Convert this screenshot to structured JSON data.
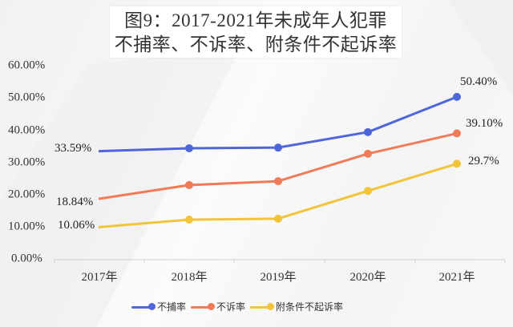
{
  "title": {
    "line1": "图9：2017-2021年未成年人犯罪",
    "line2": "不捕率、不诉率、附条件不起诉率"
  },
  "y_axis": {
    "ticks": [
      "60.00%",
      "50.00%",
      "40.00%",
      "30.00%",
      "20.00%",
      "10.00%",
      "0.00%"
    ]
  },
  "x_axis": {
    "ticks": [
      "2017年",
      "2018年",
      "2019年",
      "2020年",
      "2021年"
    ]
  },
  "data_labels": {
    "blue_start": "33.59%",
    "orange_start": "18.84%",
    "yellow_start": "10.06%",
    "blue_end": "50.40%",
    "orange_end": "39.10%",
    "yellow_end": "29.7%"
  },
  "legend": [
    {
      "label": "不捕率",
      "color": "#4e66d9"
    },
    {
      "label": "不诉率",
      "color": "#ef7b57"
    },
    {
      "label": "附条件不起诉率",
      "color": "#f2c43a"
    }
  ],
  "chart_data": {
    "type": "line",
    "title": "图9：2017-2021年未成年人犯罪 不捕率、不诉率、附条件不起诉率",
    "categories": [
      "2017年",
      "2018年",
      "2019年",
      "2020年",
      "2021年"
    ],
    "series": [
      {
        "name": "不捕率",
        "color": "#4e66d9",
        "values": [
          33.59,
          34.5,
          34.7,
          39.5,
          50.4
        ]
      },
      {
        "name": "不诉率",
        "color": "#ef7b57",
        "values": [
          18.84,
          23.1,
          24.3,
          32.8,
          39.1
        ]
      },
      {
        "name": "附条件不起诉率",
        "color": "#f2c43a",
        "values": [
          10.06,
          12.4,
          12.7,
          21.3,
          29.7
        ]
      }
    ],
    "xlabel": "",
    "ylabel": "",
    "ylim": [
      0,
      60
    ],
    "yticks": [
      0,
      10,
      20,
      30,
      40,
      50,
      60
    ],
    "ytick_format": "percent_2dp",
    "grid": false,
    "legend_position": "bottom",
    "annotations": [
      {
        "series": "不捕率",
        "x": "2017年",
        "text": "33.59%"
      },
      {
        "series": "不诉率",
        "x": "2017年",
        "text": "18.84%"
      },
      {
        "series": "附条件不起诉率",
        "x": "2017年",
        "text": "10.06%"
      },
      {
        "series": "不捕率",
        "x": "2021年",
        "text": "50.40%"
      },
      {
        "series": "不诉率",
        "x": "2021年",
        "text": "39.10%"
      },
      {
        "series": "附条件不起诉率",
        "x": "2021年",
        "text": "29.7%"
      }
    ]
  }
}
